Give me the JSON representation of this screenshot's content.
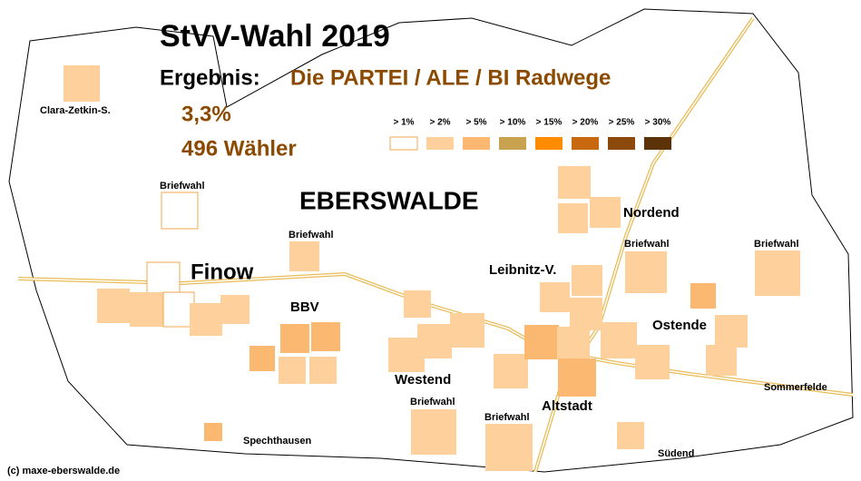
{
  "header": {
    "title": "StVV-Wahl 2019",
    "result_label": "Ergebnis:",
    "party": "Die PARTEI / ALE / BI Radwege",
    "share": "3,3%",
    "voters": "496 Wähler"
  },
  "city": "EBERSWALDE",
  "legend": [
    {
      "label": "> 1%",
      "color": "#ffffff"
    },
    {
      "label": "> 2%",
      "color": "#fdd09c"
    },
    {
      "label": "> 5%",
      "color": "#fbb870"
    },
    {
      "label": "> 10%",
      "color": "#c9a24f"
    },
    {
      "label": "> 15%",
      "color": "#ff8c00"
    },
    {
      "label": "> 20%",
      "color": "#c8680f"
    },
    {
      "label": "> 25%",
      "color": "#8b4a0c"
    },
    {
      "label": "> 30%",
      "color": "#5c3208"
    }
  ],
  "districts": [
    "Finow",
    "BBV",
    "Nordend",
    "Leibnitz-V.",
    "Ostende",
    "Westend",
    "Altstadt"
  ],
  "small_labels": [
    "Clara-Zetkin-S.",
    "Briefwahl",
    "Briefwahl",
    "Briefwahl",
    "Briefwahl",
    "Briefwahl",
    "Briefwahl",
    "Spechthausen",
    "Sommerfelde",
    "Südend"
  ],
  "copyright": "(c) maxe-eberswalde.de"
}
